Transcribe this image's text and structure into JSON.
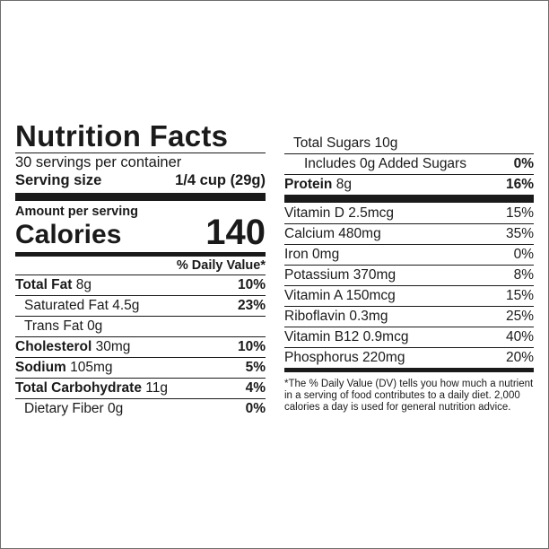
{
  "label": {
    "title": "Nutrition Facts",
    "servings_per_container": "30 servings per container",
    "serving_size_label": "Serving size",
    "serving_size_value": "1/4 cup (29g)",
    "amount_per_serving": "Amount per serving",
    "calories_label": "Calories",
    "calories_value": "140",
    "dv_header": "% Daily Value*"
  },
  "nutrients_left": [
    {
      "name": "Total Fat",
      "amount": "8g",
      "dv": "10%"
    },
    {
      "name": "Saturated Fat",
      "amount": "4.5g",
      "dv": "23%"
    },
    {
      "name": "Trans Fat",
      "amount": "0g",
      "dv": ""
    },
    {
      "name": "Cholesterol",
      "amount": "30mg",
      "dv": "10%"
    },
    {
      "name": "Sodium",
      "amount": "105mg",
      "dv": "5%"
    },
    {
      "name": "Total Carbohydrate",
      "amount": "11g",
      "dv": "4%"
    },
    {
      "name": "Dietary Fiber",
      "amount": "0g",
      "dv": "0%"
    }
  ],
  "nutrients_right": {
    "total_sugars": {
      "name": "Total Sugars",
      "amount": "10g"
    },
    "added_sugars": {
      "name": "Includes 0g Added Sugars",
      "dv": "0%"
    },
    "protein": {
      "name": "Protein",
      "amount": "8g",
      "dv": "16%"
    }
  },
  "vitamins": [
    {
      "name": "Vitamin D",
      "amount": "2.5mcg",
      "dv": "15%"
    },
    {
      "name": "Calcium",
      "amount": "480mg",
      "dv": "35%"
    },
    {
      "name": "Iron",
      "amount": "0mg",
      "dv": "0%"
    },
    {
      "name": "Potassium",
      "amount": "370mg",
      "dv": "8%"
    },
    {
      "name": "Vitamin A",
      "amount": "150mcg",
      "dv": "15%"
    },
    {
      "name": "Riboflavin",
      "amount": "0.3mg",
      "dv": "25%"
    },
    {
      "name": "Vitamin B12",
      "amount": "0.9mcg",
      "dv": "40%"
    },
    {
      "name": "Phosphorus",
      "amount": "220mg",
      "dv": "20%"
    }
  ],
  "footnote": "*The % Daily Value (DV) tells you how much a nutrient in a serving of food contributes to a daily diet. 2,000 calories a day is used for general nutrition advice."
}
